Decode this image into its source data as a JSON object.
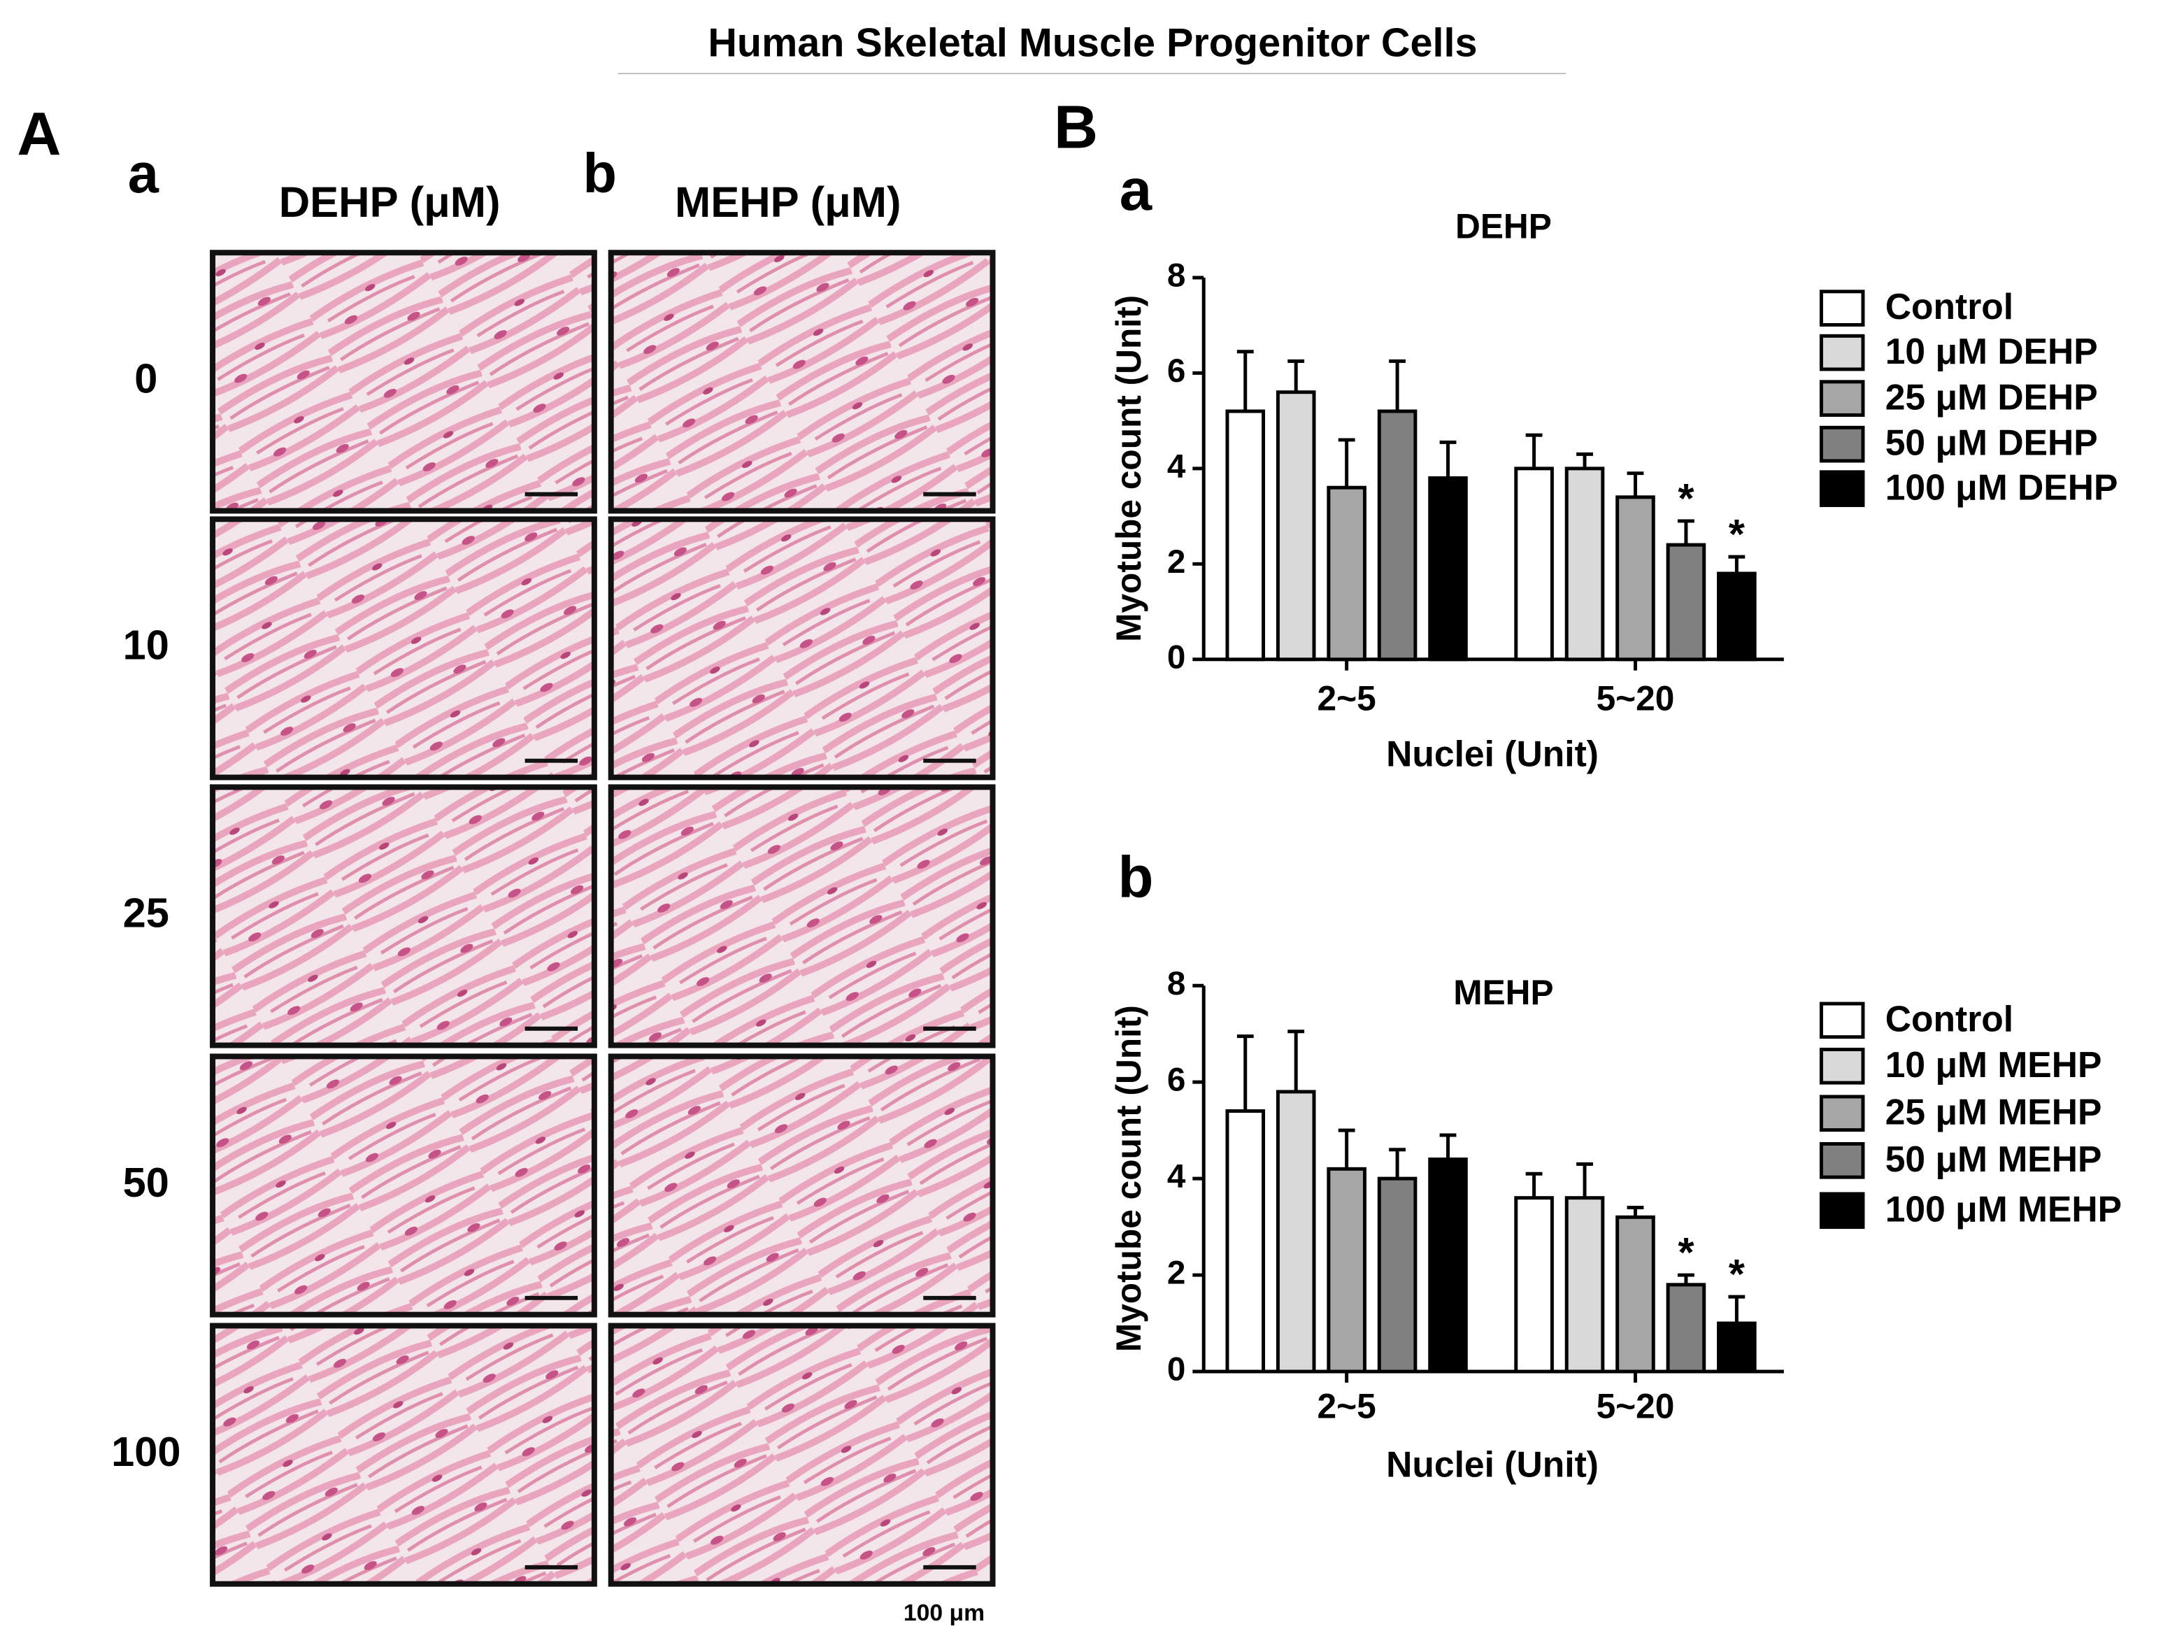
{
  "figure": {
    "title": "Human Skeletal Muscle Progenitor Cells",
    "panel_a": {
      "label": "A",
      "columns": [
        {
          "label": "a",
          "title": "DEHP (μM)"
        },
        {
          "label": "b",
          "title": "MEHP (μM)"
        }
      ],
      "rows": [
        "0",
        "10",
        "25",
        "50",
        "100"
      ],
      "scale_bar": "100 μm"
    },
    "panel_b": {
      "label": "B"
    }
  },
  "chart_data": [
    {
      "type": "bar",
      "label": "a",
      "title": "DEHP",
      "x_label": "Nuclei (Unit)",
      "y_label": "Myotube count (Unit)",
      "categories": [
        "2~5",
        "5~20"
      ],
      "ylim": [
        0,
        8
      ],
      "yticks": [
        0,
        2,
        4,
        6,
        8
      ],
      "series": [
        {
          "name": "Control",
          "color": "#ffffff",
          "values": [
            5.2,
            4.0
          ],
          "errors": [
            1.25,
            0.7
          ]
        },
        {
          "name": "10 μM DEHP",
          "color": "#d9d9d9",
          "values": [
            5.6,
            4.0
          ],
          "errors": [
            0.65,
            0.3
          ]
        },
        {
          "name": "25 μM DEHP",
          "color": "#a6a6a6",
          "values": [
            3.6,
            3.4
          ],
          "errors": [
            1.0,
            0.5
          ]
        },
        {
          "name": "50 μM DEHP",
          "color": "#808080",
          "values": [
            5.2,
            2.4
          ],
          "errors": [
            1.05,
            0.5
          ],
          "marks": [
            null,
            "*"
          ]
        },
        {
          "name": "100 μM DEHP",
          "color": "#000000",
          "values": [
            3.8,
            1.8
          ],
          "errors": [
            0.75,
            0.35
          ],
          "marks": [
            null,
            "*"
          ]
        }
      ]
    },
    {
      "type": "bar",
      "label": "b",
      "title": "MEHP",
      "x_label": "Nuclei (Unit)",
      "y_label": "Myotube count (Unit)",
      "categories": [
        "2~5",
        "5~20"
      ],
      "ylim": [
        0,
        8
      ],
      "yticks": [
        0,
        2,
        4,
        6,
        8
      ],
      "series": [
        {
          "name": "Control",
          "color": "#ffffff",
          "values": [
            5.4,
            3.6
          ],
          "errors": [
            1.55,
            0.5
          ]
        },
        {
          "name": "10 μM MEHP",
          "color": "#d9d9d9",
          "values": [
            5.8,
            3.6
          ],
          "errors": [
            1.25,
            0.7
          ]
        },
        {
          "name": "25 μM MEHP",
          "color": "#a6a6a6",
          "values": [
            4.2,
            3.2
          ],
          "errors": [
            0.8,
            0.2
          ]
        },
        {
          "name": "50 μM MEHP",
          "color": "#808080",
          "values": [
            4.0,
            1.8
          ],
          "errors": [
            0.6,
            0.2
          ],
          "marks": [
            null,
            "*"
          ]
        },
        {
          "name": "100 μM MEHP",
          "color": "#000000",
          "values": [
            4.4,
            1.0
          ],
          "errors": [
            0.5,
            0.55
          ],
          "marks": [
            null,
            "*"
          ]
        }
      ]
    }
  ]
}
